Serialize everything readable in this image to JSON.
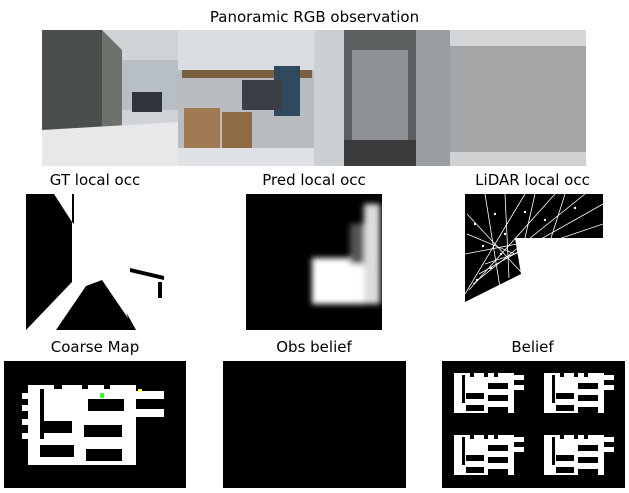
{
  "panels": {
    "rgb": {
      "title": "Panoramic RGB observation"
    },
    "gt": {
      "title": "GT local occ"
    },
    "pred": {
      "title": "Pred local occ"
    },
    "lidar": {
      "title": "LiDAR local occ"
    },
    "coarse": {
      "title": "Coarse Map"
    },
    "obs": {
      "title": "Obs belief"
    },
    "belief": {
      "title": "Belief"
    }
  },
  "colors": {
    "occupied": "#000000",
    "free": "#ffffff",
    "agent_marker": "#33ff33",
    "goal_marker": "#ffff66"
  }
}
